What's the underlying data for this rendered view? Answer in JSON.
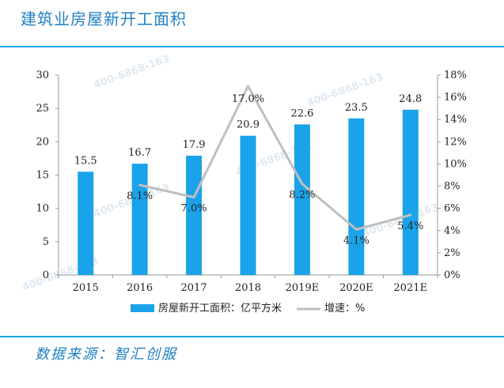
{
  "page": {
    "title": "建筑业房屋新开工面积",
    "source": "数据来源：智汇创服",
    "watermark": "400-6868-163"
  },
  "colors": {
    "bar": "#1aa3e8",
    "line": "#bfbfbf",
    "accent": "#1f7fc4"
  },
  "chart_data": {
    "type": "bar",
    "title": "",
    "categories": [
      "2015",
      "2016",
      "2017",
      "2018",
      "2019E",
      "2020E",
      "2021E"
    ],
    "series": [
      {
        "name": "房屋新开工面积：亿平方米",
        "type": "bar",
        "axis": "left",
        "values": [
          15.5,
          16.7,
          17.9,
          20.9,
          22.6,
          23.5,
          24.8
        ],
        "labels": [
          "15.5",
          "16.7",
          "17.9",
          "20.9",
          "22.6",
          "23.5",
          "24.8"
        ]
      },
      {
        "name": "增速：%",
        "type": "line",
        "axis": "right",
        "values": [
          null,
          8.1,
          7.0,
          17.0,
          8.2,
          4.1,
          5.4
        ],
        "labels": [
          "",
          "8.1%",
          "7.0%",
          "17.0%",
          "8.2%",
          "4.1%",
          "5.4%"
        ]
      }
    ],
    "y_left": {
      "min": 0,
      "max": 30,
      "ticks": [
        "0",
        "5",
        "10",
        "15",
        "20",
        "25",
        "30"
      ]
    },
    "y_right": {
      "min": 0,
      "max": 18,
      "ticks": [
        "0%",
        "2%",
        "4%",
        "6%",
        "8%",
        "10%",
        "12%",
        "14%",
        "16%",
        "18%"
      ]
    },
    "legend": {
      "position": "bottom"
    },
    "grid": false
  }
}
